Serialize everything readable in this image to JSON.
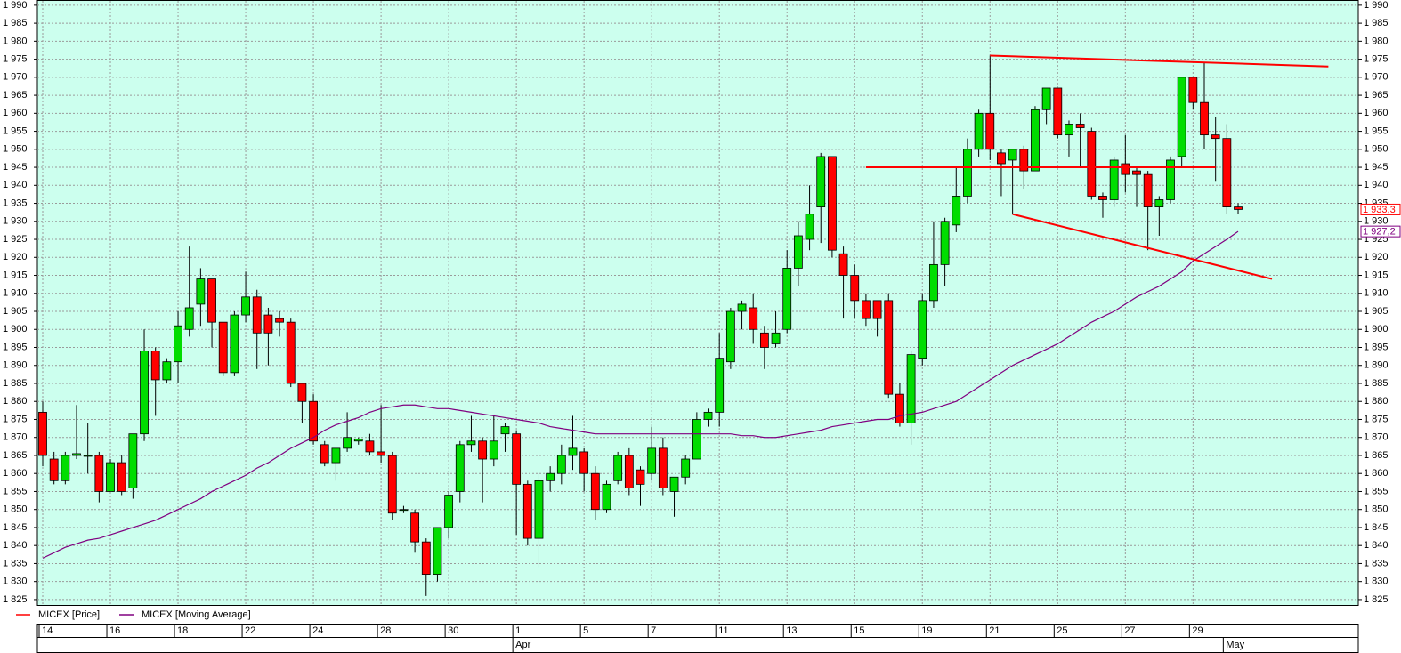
{
  "chart_data": {
    "type": "candlestick",
    "categories": [
      "14",
      null,
      null,
      null,
      null,
      null,
      "16",
      null,
      null,
      null,
      null,
      null,
      "18",
      null,
      null,
      null,
      null,
      null,
      "22",
      null,
      null,
      null,
      null,
      null,
      "24",
      null,
      null,
      null,
      null,
      null,
      "28",
      null,
      null,
      null,
      null,
      null,
      "30",
      null,
      null,
      null,
      null,
      null,
      "1",
      null,
      null,
      null,
      null,
      null,
      "5",
      null,
      null,
      null,
      null,
      null,
      "7",
      null,
      null,
      null,
      null,
      null,
      "11",
      null,
      null,
      null,
      null,
      null,
      "13",
      null,
      null,
      null,
      null,
      null,
      "15",
      null,
      null,
      null,
      null,
      null,
      "19",
      null,
      null,
      null,
      null,
      null,
      "21",
      null,
      null,
      null,
      null,
      null,
      "25",
      null,
      null,
      null,
      null,
      null,
      "27",
      null,
      null,
      null,
      null,
      null,
      "29",
      null,
      null,
      null,
      null
    ],
    "months": [
      null,
      null,
      null,
      null,
      null,
      null,
      null,
      null,
      null,
      null,
      null,
      null,
      null,
      null,
      null,
      null,
      null,
      null,
      null,
      null,
      null,
      null,
      null,
      null,
      null,
      null,
      null,
      null,
      null,
      null,
      null,
      null,
      null,
      null,
      null,
      null,
      null,
      null,
      null,
      null,
      null,
      null,
      "Apr",
      null,
      null,
      null,
      null,
      null,
      null,
      null,
      null,
      null,
      null,
      null,
      null,
      null,
      null,
      null,
      null,
      null,
      null,
      null,
      null,
      null,
      null,
      null,
      null,
      null,
      null,
      null,
      null,
      null,
      null,
      null,
      null,
      null,
      null,
      null,
      null,
      null,
      null,
      null,
      null,
      null,
      null,
      null,
      null,
      null,
      null,
      null,
      null,
      null,
      null,
      null,
      null,
      null,
      null,
      null,
      null,
      null,
      null,
      null,
      null,
      null,
      null,
      "May",
      null
    ],
    "series": [
      {
        "name": "MICEX [Price]",
        "color": "#ff0000",
        "up_color": "#00dd00",
        "down_color": "#ff0000",
        "open": [
          1877,
          1864,
          1858,
          1865,
          1865,
          1865,
          1855,
          1863,
          1856,
          1871,
          1894,
          1886,
          1891,
          1900,
          1907,
          1914,
          1902,
          1888,
          1904,
          1909,
          1904,
          1903,
          1902,
          1885,
          1880,
          1868,
          1863,
          1867,
          1869,
          1869,
          1866,
          1865,
          1850,
          1849,
          1841,
          1832,
          1845,
          1855,
          1868,
          1869,
          1864,
          1871,
          1871,
          1857,
          1842,
          1858,
          1860,
          1865,
          1866,
          1860,
          1850,
          1858,
          1865,
          1861,
          1860,
          1867,
          1855,
          1859,
          1864,
          1875,
          1877,
          1891,
          1905,
          1906,
          1899,
          1896,
          1900,
          1917,
          1925,
          1934,
          1948,
          1921,
          1915,
          1908,
          1908,
          1908,
          1882,
          1874,
          1892,
          1908,
          1918,
          1929,
          1937,
          1950,
          1960,
          1949,
          1947,
          1950,
          1944,
          1961,
          1967,
          1954,
          1957,
          1955,
          1937,
          1936,
          1946,
          1944,
          1943,
          1934,
          1936,
          1948,
          1970,
          1963,
          1954,
          1953,
          1934
        ],
        "high": [
          1880,
          1866,
          1866,
          1879,
          1874,
          1866,
          1864,
          1865,
          1871,
          1900,
          1895,
          1892,
          1905,
          1923,
          1917,
          1914,
          1902,
          1905,
          1916,
          1911,
          1906,
          1905,
          1903,
          1885,
          1882,
          1869,
          1867,
          1877,
          1870,
          1871,
          1879,
          1866,
          1851,
          1850,
          1842,
          1845,
          1855,
          1869,
          1876,
          1870,
          1876,
          1874,
          1872,
          1858,
          1860,
          1862,
          1868,
          1876,
          1867,
          1862,
          1858,
          1866,
          1867,
          1862,
          1873,
          1870,
          1859,
          1865,
          1877,
          1878,
          1899,
          1906,
          1908,
          1910,
          1901,
          1905,
          1922,
          1930,
          1940,
          1949,
          1948,
          1923,
          1918,
          1910,
          1908,
          1910,
          1885,
          1894,
          1910,
          1930,
          1931,
          1945,
          1953,
          1961,
          1976,
          1950,
          1950,
          1951,
          1962,
          1967,
          1967,
          1958,
          1960,
          1956,
          1938,
          1948,
          1954,
          1945,
          1944,
          1937,
          1948,
          1970,
          1970,
          1974,
          1959,
          1957,
          1935
        ],
        "low": [
          1862,
          1857,
          1857,
          1864,
          1860,
          1852,
          1855,
          1854,
          1853,
          1869,
          1876,
          1885,
          1885,
          1898,
          1901,
          1895,
          1887,
          1887,
          1902,
          1889,
          1890,
          1898,
          1884,
          1874,
          1868,
          1862,
          1858,
          1866,
          1868,
          1865,
          1863,
          1847,
          1849,
          1838,
          1826,
          1830,
          1842,
          1852,
          1866,
          1852,
          1862,
          1866,
          1843,
          1840,
          1834,
          1855,
          1857,
          1861,
          1855,
          1847,
          1849,
          1857,
          1854,
          1851,
          1858,
          1854,
          1848,
          1857,
          1864,
          1873,
          1873,
          1889,
          1900,
          1896,
          1889,
          1895,
          1899,
          1912,
          1922,
          1924,
          1920,
          1903,
          1903,
          1901,
          1898,
          1881,
          1873,
          1868,
          1890,
          1906,
          1912,
          1927,
          1935,
          1948,
          1947,
          1937,
          1932,
          1939,
          1944,
          1957,
          1953,
          1948,
          1945,
          1936,
          1931,
          1934,
          1938,
          1934,
          1922,
          1926,
          1935,
          1945,
          1961,
          1950,
          1941,
          1932,
          1932
        ],
        "close": [
          1865,
          1858,
          1865,
          1865.5,
          1865,
          1855,
          1863,
          1855,
          1871,
          1894,
          1886,
          1891,
          1901,
          1906,
          1914,
          1902,
          1888,
          1904,
          1909,
          1899,
          1899,
          1902,
          1885,
          1880,
          1869,
          1863,
          1867,
          1870,
          1869.5,
          1866,
          1865,
          1849,
          1850,
          1841,
          1832,
          1845,
          1854,
          1868,
          1869,
          1864,
          1869,
          1873,
          1857,
          1842,
          1858,
          1860,
          1865,
          1867,
          1860,
          1850,
          1857,
          1865,
          1856,
          1857,
          1867,
          1856,
          1859,
          1864,
          1875,
          1877,
          1892,
          1905,
          1907,
          1900,
          1895,
          1899,
          1917,
          1926,
          1932,
          1948,
          1922,
          1915,
          1908,
          1903,
          1903,
          1882,
          1874,
          1893,
          1908,
          1918,
          1930,
          1937,
          1950,
          1960,
          1950,
          1946,
          1950,
          1944,
          1961,
          1967,
          1954,
          1957,
          1956,
          1937,
          1936,
          1947,
          1943,
          1943,
          1934,
          1936,
          1947,
          1970,
          1963,
          1954,
          1953,
          1934,
          1933.3
        ],
        "last_label": {
          "value": 1933.3,
          "label": "1 933,3"
        }
      },
      {
        "name": "MICEX [Moving Average]",
        "color": "#800080",
        "type": "line",
        "values": [
          1836.5,
          1838,
          1839.5,
          1840.5,
          1841.5,
          1842,
          1843,
          1844,
          1845,
          1846,
          1847,
          1848.5,
          1850,
          1851.5,
          1853,
          1855,
          1856.5,
          1858,
          1859.5,
          1861.5,
          1863,
          1865,
          1867,
          1868.5,
          1870,
          1872,
          1873.5,
          1874.5,
          1875.5,
          1877,
          1878,
          1878.5,
          1879,
          1879,
          1878.5,
          1878,
          1878,
          1877.5,
          1877,
          1876.5,
          1876,
          1875.5,
          1875,
          1874.5,
          1874,
          1873,
          1872.5,
          1872,
          1871.5,
          1871,
          1871,
          1871,
          1871,
          1871,
          1871,
          1871,
          1871,
          1871,
          1871,
          1871,
          1871,
          1871,
          1870.5,
          1870.5,
          1870,
          1870,
          1870.5,
          1871,
          1871.5,
          1872,
          1873,
          1873.5,
          1874,
          1874.5,
          1875,
          1875,
          1876,
          1876.5,
          1877,
          1878,
          1879,
          1880,
          1882,
          1884,
          1886,
          1888,
          1890,
          1891.5,
          1893,
          1894.5,
          1896,
          1898,
          1900,
          1902,
          1903.5,
          1905,
          1907,
          1909,
          1910.5,
          1912,
          1914,
          1916,
          1919,
          1921,
          1923,
          1925,
          1927.2
        ],
        "last_label": {
          "value": 1927.2,
          "label": "1 927,2"
        }
      }
    ],
    "trendlines": [
      {
        "color": "#ff0000",
        "x": [
          84,
          114
        ],
        "y": [
          1976,
          1973
        ]
      },
      {
        "color": "#ff0000",
        "x": [
          73,
          104
        ],
        "y": [
          1945,
          1945
        ]
      },
      {
        "color": "#ff0000",
        "x": [
          86,
          109
        ],
        "y": [
          1932,
          1914
        ]
      }
    ],
    "ylim": [
      1823.5,
      1991.2
    ],
    "yticks": [
      {
        "value": 1825,
        "label": "1 825"
      },
      {
        "value": 1830,
        "label": "1 830"
      },
      {
        "value": 1835,
        "label": "1 835"
      },
      {
        "value": 1840,
        "label": "1 840"
      },
      {
        "value": 1845,
        "label": "1 845"
      },
      {
        "value": 1850,
        "label": "1 850"
      },
      {
        "value": 1855,
        "label": "1 855"
      },
      {
        "value": 1860,
        "label": "1 860"
      },
      {
        "value": 1865,
        "label": "1 865"
      },
      {
        "value": 1870,
        "label": "1 870"
      },
      {
        "value": 1875,
        "label": "1 875"
      },
      {
        "value": 1880,
        "label": "1 880"
      },
      {
        "value": 1885,
        "label": "1 885"
      },
      {
        "value": 1890,
        "label": "1 890"
      },
      {
        "value": 1895,
        "label": "1 895"
      },
      {
        "value": 1900,
        "label": "1 900"
      },
      {
        "value": 1905,
        "label": "1 905"
      },
      {
        "value": 1910,
        "label": "1 910"
      },
      {
        "value": 1915,
        "label": "1 915"
      },
      {
        "value": 1920,
        "label": "1 920"
      },
      {
        "value": 1925,
        "label": "1 925"
      },
      {
        "value": 1930,
        "label": "1 930"
      },
      {
        "value": 1935,
        "label": "1 935"
      },
      {
        "value": 1940,
        "label": "1 940"
      },
      {
        "value": 1945,
        "label": "1 945"
      },
      {
        "value": 1950,
        "label": "1 950"
      },
      {
        "value": 1955,
        "label": "1 955"
      },
      {
        "value": 1960,
        "label": "1 960"
      },
      {
        "value": 1965,
        "label": "1 965"
      },
      {
        "value": 1970,
        "label": "1 970"
      },
      {
        "value": 1975,
        "label": "1 975"
      },
      {
        "value": 1980,
        "label": "1 980"
      },
      {
        "value": 1985,
        "label": "1 985"
      },
      {
        "value": 1990,
        "label": "1 990"
      }
    ],
    "grid": true,
    "background": "#ccffee"
  }
}
